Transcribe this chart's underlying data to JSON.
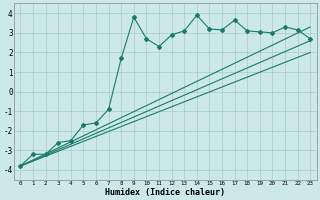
{
  "xlabel": "Humidex (Indice chaleur)",
  "bg_color": "#cce8e8",
  "grid_color": "#aacccc",
  "line_color": "#1a7a6e",
  "xlim": [
    -0.5,
    23.5
  ],
  "ylim": [
    -4.5,
    4.5
  ],
  "xticks": [
    0,
    1,
    2,
    3,
    4,
    5,
    6,
    7,
    8,
    9,
    10,
    11,
    12,
    13,
    14,
    15,
    16,
    17,
    18,
    19,
    20,
    21,
    22,
    23
  ],
  "yticks": [
    -4,
    -3,
    -2,
    -1,
    0,
    1,
    2,
    3,
    4
  ],
  "zigzag_x": [
    0,
    1,
    2,
    3,
    4,
    5,
    6,
    7,
    8,
    9,
    10,
    11,
    12,
    13,
    14,
    15,
    16,
    17,
    18,
    19,
    20,
    21,
    22,
    23
  ],
  "zigzag_y": [
    -3.8,
    -3.2,
    -3.2,
    -2.6,
    -2.5,
    -1.7,
    -1.6,
    -0.9,
    1.7,
    3.8,
    2.7,
    2.3,
    2.9,
    3.1,
    3.9,
    3.2,
    3.15,
    3.65,
    3.1,
    3.05,
    3.0,
    3.3,
    3.15,
    2.7
  ],
  "line1_x": [
    0,
    23
  ],
  "line1_y": [
    -3.8,
    3.3
  ],
  "line2_x": [
    0,
    23
  ],
  "line2_y": [
    -3.8,
    2.6
  ],
  "line3_x": [
    0,
    23
  ],
  "line3_y": [
    -3.8,
    2.0
  ]
}
